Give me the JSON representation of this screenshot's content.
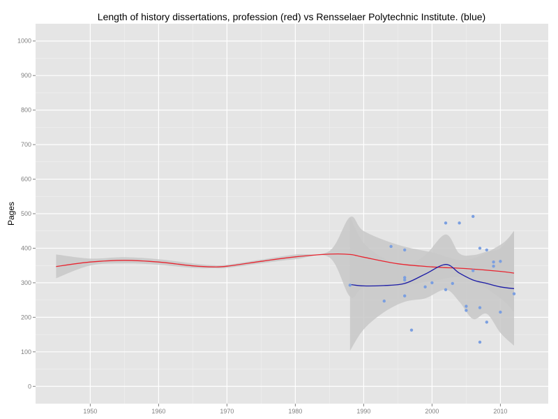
{
  "chart_data": {
    "type": "scatter",
    "title": "Length of history dissertations, profession (red) vs Rensselaer Polytechnic Institute. (blue)",
    "xlabel": "",
    "ylabel": "Pages",
    "xlim": [
      1942,
      2017
    ],
    "ylim": [
      -50,
      1050
    ],
    "x_ticks": [
      1950,
      1960,
      1970,
      1980,
      1990,
      2000,
      2010
    ],
    "y_ticks": [
      0,
      100,
      200,
      300,
      400,
      500,
      600,
      700,
      800,
      900,
      1000
    ],
    "grid": true,
    "colors": {
      "panel_bg": "#e5e5e5",
      "grid_major": "#ffffff",
      "grid_minor": "#f2f2f2",
      "ribbon": "#c8c8c8",
      "profession_line": "#e8242f",
      "rpi_line": "#1a1aa6",
      "points": "#7b9fe0"
    },
    "series": [
      {
        "kind": "smooth",
        "color_key": "profession_line",
        "x": [
          1945,
          1950,
          1955,
          1960,
          1965,
          1968,
          1970,
          1975,
          1980,
          1985,
          1988,
          1990,
          1995,
          2000,
          2005,
          2010,
          2012
        ],
        "y": [
          347,
          360,
          365,
          360,
          349,
          346,
          348,
          362,
          375,
          383,
          382,
          374,
          355,
          346,
          341,
          333,
          328
        ],
        "lower": [
          313,
          350,
          356,
          352,
          343,
          342,
          343,
          356,
          368,
          373,
          260,
          285,
          290,
          305,
          315,
          255,
          215
        ],
        "upper": [
          382,
          370,
          374,
          368,
          356,
          351,
          352,
          367,
          382,
          392,
          490,
          450,
          410,
          388,
          366,
          410,
          450
        ]
      },
      {
        "kind": "smooth",
        "color_key": "rpi_line",
        "x": [
          1988,
          1990,
          1993,
          1996,
          1999,
          2002,
          2004,
          2006,
          2008,
          2010,
          2012
        ],
        "y": [
          295,
          291,
          292,
          298,
          325,
          353,
          328,
          308,
          298,
          288,
          283
        ],
        "lower": [
          103,
          165,
          215,
          245,
          255,
          280,
          245,
          195,
          210,
          155,
          118
        ],
        "upper": [
          490,
          415,
          370,
          350,
          380,
          440,
          385,
          380,
          390,
          400,
          450
        ]
      },
      {
        "kind": "points",
        "color_key": "points",
        "x": [
          1988,
          1993,
          1994,
          1996,
          1996,
          1996,
          1996,
          1997,
          1999,
          2000,
          2002,
          2002,
          2003,
          2004,
          2005,
          2005,
          2006,
          2006,
          2007,
          2007,
          2007,
          2008,
          2008,
          2009,
          2009,
          2010,
          2010,
          2012
        ],
        "y": [
          293,
          247,
          405,
          395,
          315,
          308,
          262,
          163,
          288,
          300,
          473,
          280,
          298,
          473,
          232,
          220,
          335,
          492,
          400,
          128,
          228,
          186,
          395,
          360,
          348,
          362,
          215,
          268
        ]
      }
    ]
  }
}
